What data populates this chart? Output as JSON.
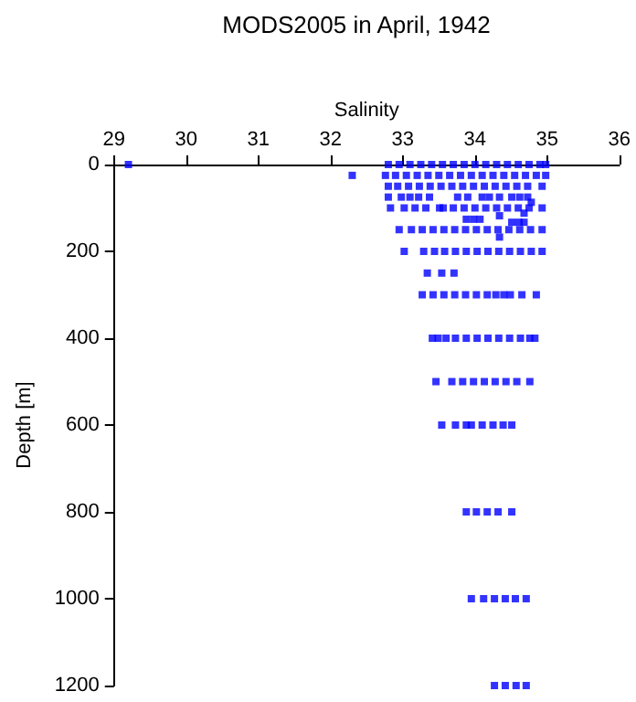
{
  "chart_data": {
    "type": "scatter",
    "title": "MODS2005 in April, 1942",
    "xlabel": "Salinity",
    "ylabel": "Depth [m]",
    "xlim": [
      29,
      36
    ],
    "xticks": [
      29,
      30,
      31,
      32,
      33,
      34,
      35,
      36
    ],
    "ylim": [
      1200,
      0
    ],
    "yticks": [
      0,
      200,
      400,
      600,
      800,
      1000,
      1200
    ],
    "grid": false,
    "marker": "square",
    "series": [
      {
        "color": "#0000ff",
        "x": [
          29.2,
          32.8,
          32.95,
          33.1,
          33.25,
          33.4,
          33.55,
          33.7,
          33.85,
          34.0,
          34.15,
          34.3,
          34.45,
          34.6,
          34.75,
          34.9,
          34.98,
          32.3,
          32.76,
          32.9,
          33.05,
          33.2,
          33.35,
          33.5,
          33.65,
          33.8,
          33.95,
          34.1,
          34.25,
          34.4,
          34.55,
          34.7,
          34.85,
          34.98,
          32.8,
          32.93,
          33.08,
          33.23,
          33.38,
          33.53,
          33.68,
          33.83,
          33.98,
          34.13,
          34.28,
          34.43,
          34.58,
          34.73,
          34.93,
          32.8,
          32.98,
          33.1,
          33.22,
          33.37,
          33.76,
          33.9,
          34.1,
          34.2,
          34.34,
          34.51,
          34.62,
          34.73,
          34.78,
          32.83,
          33.02,
          33.17,
          33.32,
          33.51,
          33.56,
          33.7,
          33.85,
          34.0,
          34.15,
          34.3,
          34.45,
          34.6,
          34.75,
          34.93,
          34.68,
          34.34,
          33.88,
          33.98,
          34.07,
          34.51,
          34.61,
          34.68,
          32.95,
          33.12,
          33.27,
          33.42,
          33.57,
          33.72,
          33.87,
          34.02,
          34.17,
          34.32,
          34.47,
          34.62,
          34.77,
          34.93,
          34.34,
          33.02,
          33.29,
          33.44,
          33.58,
          33.73,
          33.88,
          34.03,
          34.18,
          34.33,
          34.48,
          34.63,
          34.78,
          34.93,
          33.34,
          33.54,
          33.71,
          33.27,
          33.42,
          33.57,
          33.72,
          33.87,
          34.02,
          34.17,
          34.29,
          34.4,
          34.49,
          34.65,
          34.85,
          33.41,
          33.49,
          33.6,
          33.73,
          33.88,
          34.03,
          34.18,
          34.33,
          34.48,
          34.63,
          34.76,
          34.83,
          33.46,
          33.68,
          33.83,
          33.98,
          34.13,
          34.28,
          34.43,
          34.58,
          34.76,
          33.54,
          33.73,
          33.88,
          33.95,
          34.1,
          34.25,
          34.39,
          34.51,
          33.88,
          34.02,
          34.17,
          34.32,
          34.51,
          33.95,
          34.12,
          34.27,
          34.42,
          34.56,
          34.71,
          34.27,
          34.42,
          34.57,
          34.71
        ],
        "values": [
          0,
          0,
          0,
          0,
          0,
          0,
          0,
          0,
          0,
          0,
          0,
          0,
          0,
          0,
          0,
          0,
          0,
          25,
          25,
          25,
          25,
          25,
          25,
          25,
          25,
          25,
          25,
          25,
          25,
          25,
          25,
          25,
          25,
          25,
          50,
          50,
          50,
          50,
          50,
          50,
          50,
          50,
          50,
          50,
          50,
          50,
          50,
          50,
          50,
          75,
          75,
          75,
          75,
          75,
          75,
          75,
          75,
          75,
          75,
          75,
          75,
          75,
          87,
          100,
          100,
          100,
          100,
          100,
          100,
          100,
          100,
          100,
          100,
          100,
          100,
          100,
          100,
          100,
          112,
          118,
          126,
          126,
          126,
          133,
          133,
          133,
          150,
          150,
          150,
          150,
          150,
          150,
          150,
          150,
          150,
          150,
          150,
          150,
          150,
          150,
          167,
          200,
          200,
          200,
          200,
          200,
          200,
          200,
          200,
          200,
          200,
          200,
          200,
          200,
          250,
          250,
          250,
          300,
          300,
          300,
          300,
          300,
          300,
          300,
          300,
          300,
          300,
          300,
          300,
          400,
          400,
          400,
          400,
          400,
          400,
          400,
          400,
          400,
          400,
          400,
          400,
          500,
          500,
          500,
          500,
          500,
          500,
          500,
          500,
          500,
          600,
          600,
          600,
          600,
          600,
          600,
          600,
          600,
          800,
          800,
          800,
          800,
          800,
          1000,
          1000,
          1000,
          1000,
          1000,
          1000,
          1200,
          1200,
          1200,
          1200
        ]
      }
    ]
  }
}
